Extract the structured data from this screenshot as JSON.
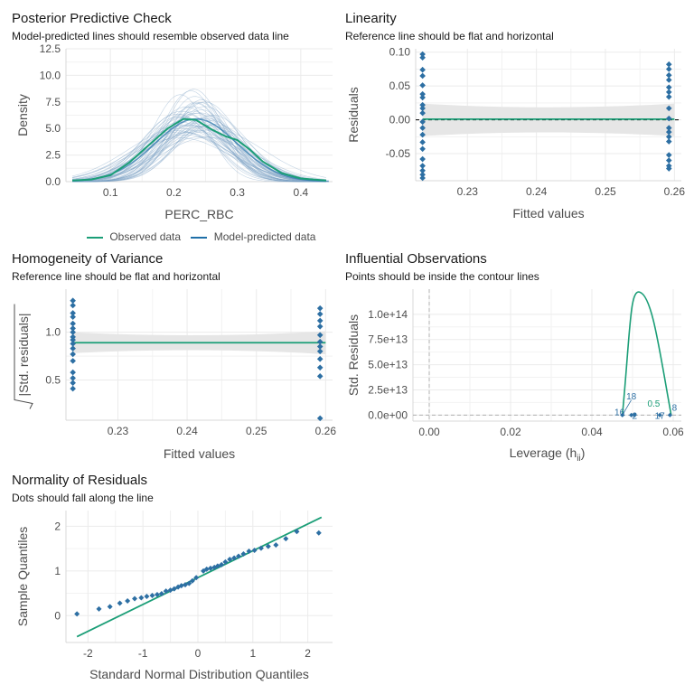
{
  "colors": {
    "observed": "#1b9e77",
    "predicted": "#1f6fa8",
    "predicted_thin": "#7a9fc4",
    "point": "#2d6fa3",
    "grid": "#ebebeb",
    "ribbon": "#e6e6e6"
  },
  "panels": {
    "ppc": {
      "title": "Posterior Predictive Check",
      "subtitle": "Model-predicted lines should resemble observed data line",
      "legend": {
        "observed": "Observed data",
        "predicted": "Model-predicted data"
      }
    },
    "linearity": {
      "title": "Linearity",
      "subtitle": "Reference line should be flat and horizontal"
    },
    "homogeneity": {
      "title": "Homogeneity of Variance",
      "subtitle": "Reference line should be flat and horizontal",
      "ylabel_text": "|Std. residuals|"
    },
    "influential": {
      "title": "Influential Observations",
      "subtitle": "Points should be inside the contour lines",
      "xlabel_main": "Leverage (h",
      "xlabel_sub": "ii",
      "xlabel_close": ")"
    },
    "normality": {
      "title": "Normality of Residuals",
      "subtitle": "Dots should fall along the line"
    }
  },
  "chart_data": [
    {
      "type": "line",
      "id": "ppc",
      "xlabel": "PERC_RBC",
      "ylabel": "Density",
      "xlim": [
        0.03,
        0.45
      ],
      "ylim": [
        0,
        12.5
      ],
      "xticks": [
        0.1,
        0.2,
        0.3,
        0.4
      ],
      "xtick_labels": [
        "0.1",
        "0.2",
        "0.3",
        "0.4"
      ],
      "yticks": [
        0,
        2.5,
        5,
        7.5,
        10,
        12.5
      ],
      "ytick_labels": [
        "0.0",
        "2.5",
        "5.0",
        "7.5",
        "10.0",
        "12.5"
      ],
      "observed": {
        "x": [
          0.04,
          0.07,
          0.1,
          0.13,
          0.16,
          0.19,
          0.215,
          0.235,
          0.26,
          0.28,
          0.3,
          0.32,
          0.34,
          0.37,
          0.4,
          0.44
        ],
        "y": [
          0.1,
          0.2,
          0.6,
          1.8,
          3.4,
          5.0,
          5.9,
          5.8,
          4.9,
          4.3,
          3.9,
          3.0,
          1.9,
          0.8,
          0.3,
          0.1
        ]
      },
      "predicted_mean": {
        "mean": 0.235,
        "sd": 0.065,
        "peak": 5.9
      },
      "predicted_draws": 50
    },
    {
      "type": "scatter",
      "id": "linearity",
      "xlabel": "Fitted values",
      "ylabel": "Residuals",
      "xlim": [
        0.2225,
        0.261
      ],
      "ylim": [
        -0.09,
        0.105
      ],
      "xticks": [
        0.23,
        0.24,
        0.25,
        0.26
      ],
      "xtick_labels": [
        "0.23",
        "0.24",
        "0.25",
        "0.26"
      ],
      "yticks": [
        -0.05,
        0,
        0.05,
        0.1
      ],
      "ytick_labels": [
        "-0.05",
        "0.00",
        "0.05",
        "0.10"
      ],
      "groups": [
        {
          "x": 0.2235,
          "y": [
            0.097,
            0.092,
            0.074,
            0.065,
            0.051,
            0.038,
            0.033,
            0.022,
            0.017,
            0.01,
            -0.003,
            -0.012,
            -0.022,
            -0.033,
            -0.043,
            -0.058,
            -0.068,
            -0.075,
            -0.081,
            -0.086
          ]
        },
        {
          "x": 0.2592,
          "y": [
            0.082,
            0.075,
            0.066,
            0.059,
            0.048,
            0.041,
            0.034,
            0.017,
            0.002,
            -0.012,
            -0.018,
            -0.025,
            -0.032,
            -0.052,
            -0.06,
            -0.068,
            -0.072
          ]
        }
      ],
      "fit_line": 0.001,
      "ribbon_halfwidth": 0.024
    },
    {
      "type": "scatter",
      "id": "homogeneity",
      "xlabel": "Fitted values",
      "xlim": [
        0.2225,
        0.261
      ],
      "ylim": [
        0.08,
        1.45
      ],
      "xticks": [
        0.23,
        0.24,
        0.25,
        0.26
      ],
      "xtick_labels": [
        "0.23",
        "0.24",
        "0.25",
        "0.26"
      ],
      "yticks": [
        0.5,
        1.0
      ],
      "ytick_labels": [
        "0.5",
        "1.0"
      ],
      "groups": [
        {
          "x": 0.2235,
          "y": [
            1.33,
            1.28,
            1.2,
            1.16,
            1.09,
            1.04,
            1.0,
            0.95,
            0.92,
            0.88,
            0.83,
            0.77,
            0.7,
            0.58,
            0.52,
            0.47,
            0.41
          ]
        },
        {
          "x": 0.2592,
          "y": [
            1.25,
            1.19,
            1.12,
            1.06,
            0.97,
            0.9,
            0.85,
            0.8,
            0.72,
            0.63,
            0.54,
            0.1
          ]
        }
      ],
      "fit_line": 0.89,
      "ribbon_halfwidth": 0.11
    },
    {
      "type": "scatter",
      "id": "influential",
      "ylabel": "Std. Residuals",
      "xlim": [
        -0.004,
        0.062
      ],
      "ylim": [
        -6000000000000.0,
        125000000000000.0
      ],
      "xticks": [
        0,
        0.02,
        0.04,
        0.06
      ],
      "xtick_labels": [
        "0.00",
        "0.02",
        "0.04",
        "0.06"
      ],
      "yticks": [
        0,
        25000000000000.0,
        50000000000000.0,
        75000000000000.0,
        100000000000000.0
      ],
      "ytick_labels": [
        "0.0e+00",
        "2.5e+13",
        "5.0e+13",
        "7.5e+13",
        "1.0e+14"
      ],
      "contour": {
        "x_left": 0.0475,
        "x_peak": 0.0518,
        "x_right": 0.0595,
        "peak": 122000000000000.0
      },
      "contour_labels": [
        "0.5",
        "0.5"
      ],
      "point_labels": [
        {
          "x": 0.0468,
          "y": 3500000000000.0,
          "label": "16"
        },
        {
          "x": 0.0497,
          "y": 19000000000000.0,
          "label": "18"
        },
        {
          "x": 0.0505,
          "y": 0,
          "label": "2"
        },
        {
          "x": 0.0567,
          "y": 0,
          "label": "17"
        },
        {
          "x": 0.0603,
          "y": 8000000000000.0,
          "label": "8"
        }
      ],
      "points": [
        {
          "x": 0.0475,
          "y": 0
        },
        {
          "x": 0.0497,
          "y": 0
        },
        {
          "x": 0.0505,
          "y": 0
        },
        {
          "x": 0.0567,
          "y": 0
        },
        {
          "x": 0.0592,
          "y": 0
        }
      ]
    },
    {
      "type": "scatter",
      "id": "normality",
      "xlabel": "Standard Normal Distribution Quantiles",
      "ylabel": "Sample Quantiles",
      "xlim": [
        -2.4,
        2.45
      ],
      "ylim": [
        -0.6,
        2.35
      ],
      "xticks": [
        -2,
        -1,
        0,
        1,
        2
      ],
      "xtick_labels": [
        "-2",
        "-1",
        "0",
        "1",
        "2"
      ],
      "yticks": [
        0,
        1,
        2
      ],
      "ytick_labels": [
        "0",
        "1",
        "2"
      ],
      "line": {
        "x": [
          -2.2,
          2.25
        ],
        "y": [
          -0.47,
          2.2
        ]
      },
      "points": {
        "x": [
          -2.2,
          -1.8,
          -1.6,
          -1.42,
          -1.28,
          -1.15,
          -1.03,
          -0.93,
          -0.83,
          -0.74,
          -0.66,
          -0.58,
          -0.5,
          -0.43,
          -0.36,
          -0.3,
          -0.23,
          -0.16,
          -0.1,
          -0.03,
          0.1,
          0.16,
          0.23,
          0.3,
          0.36,
          0.43,
          0.5,
          0.58,
          0.66,
          0.74,
          0.83,
          0.93,
          1.03,
          1.15,
          1.28,
          1.42,
          1.6,
          1.8,
          2.2
        ],
        "y": [
          0.04,
          0.15,
          0.2,
          0.28,
          0.33,
          0.38,
          0.4,
          0.43,
          0.45,
          0.47,
          0.49,
          0.55,
          0.57,
          0.6,
          0.64,
          0.67,
          0.69,
          0.72,
          0.78,
          0.85,
          1.0,
          1.04,
          1.06,
          1.08,
          1.11,
          1.14,
          1.2,
          1.26,
          1.29,
          1.33,
          1.38,
          1.44,
          1.46,
          1.51,
          1.55,
          1.58,
          1.72,
          1.88,
          1.85
        ]
      }
    }
  ]
}
